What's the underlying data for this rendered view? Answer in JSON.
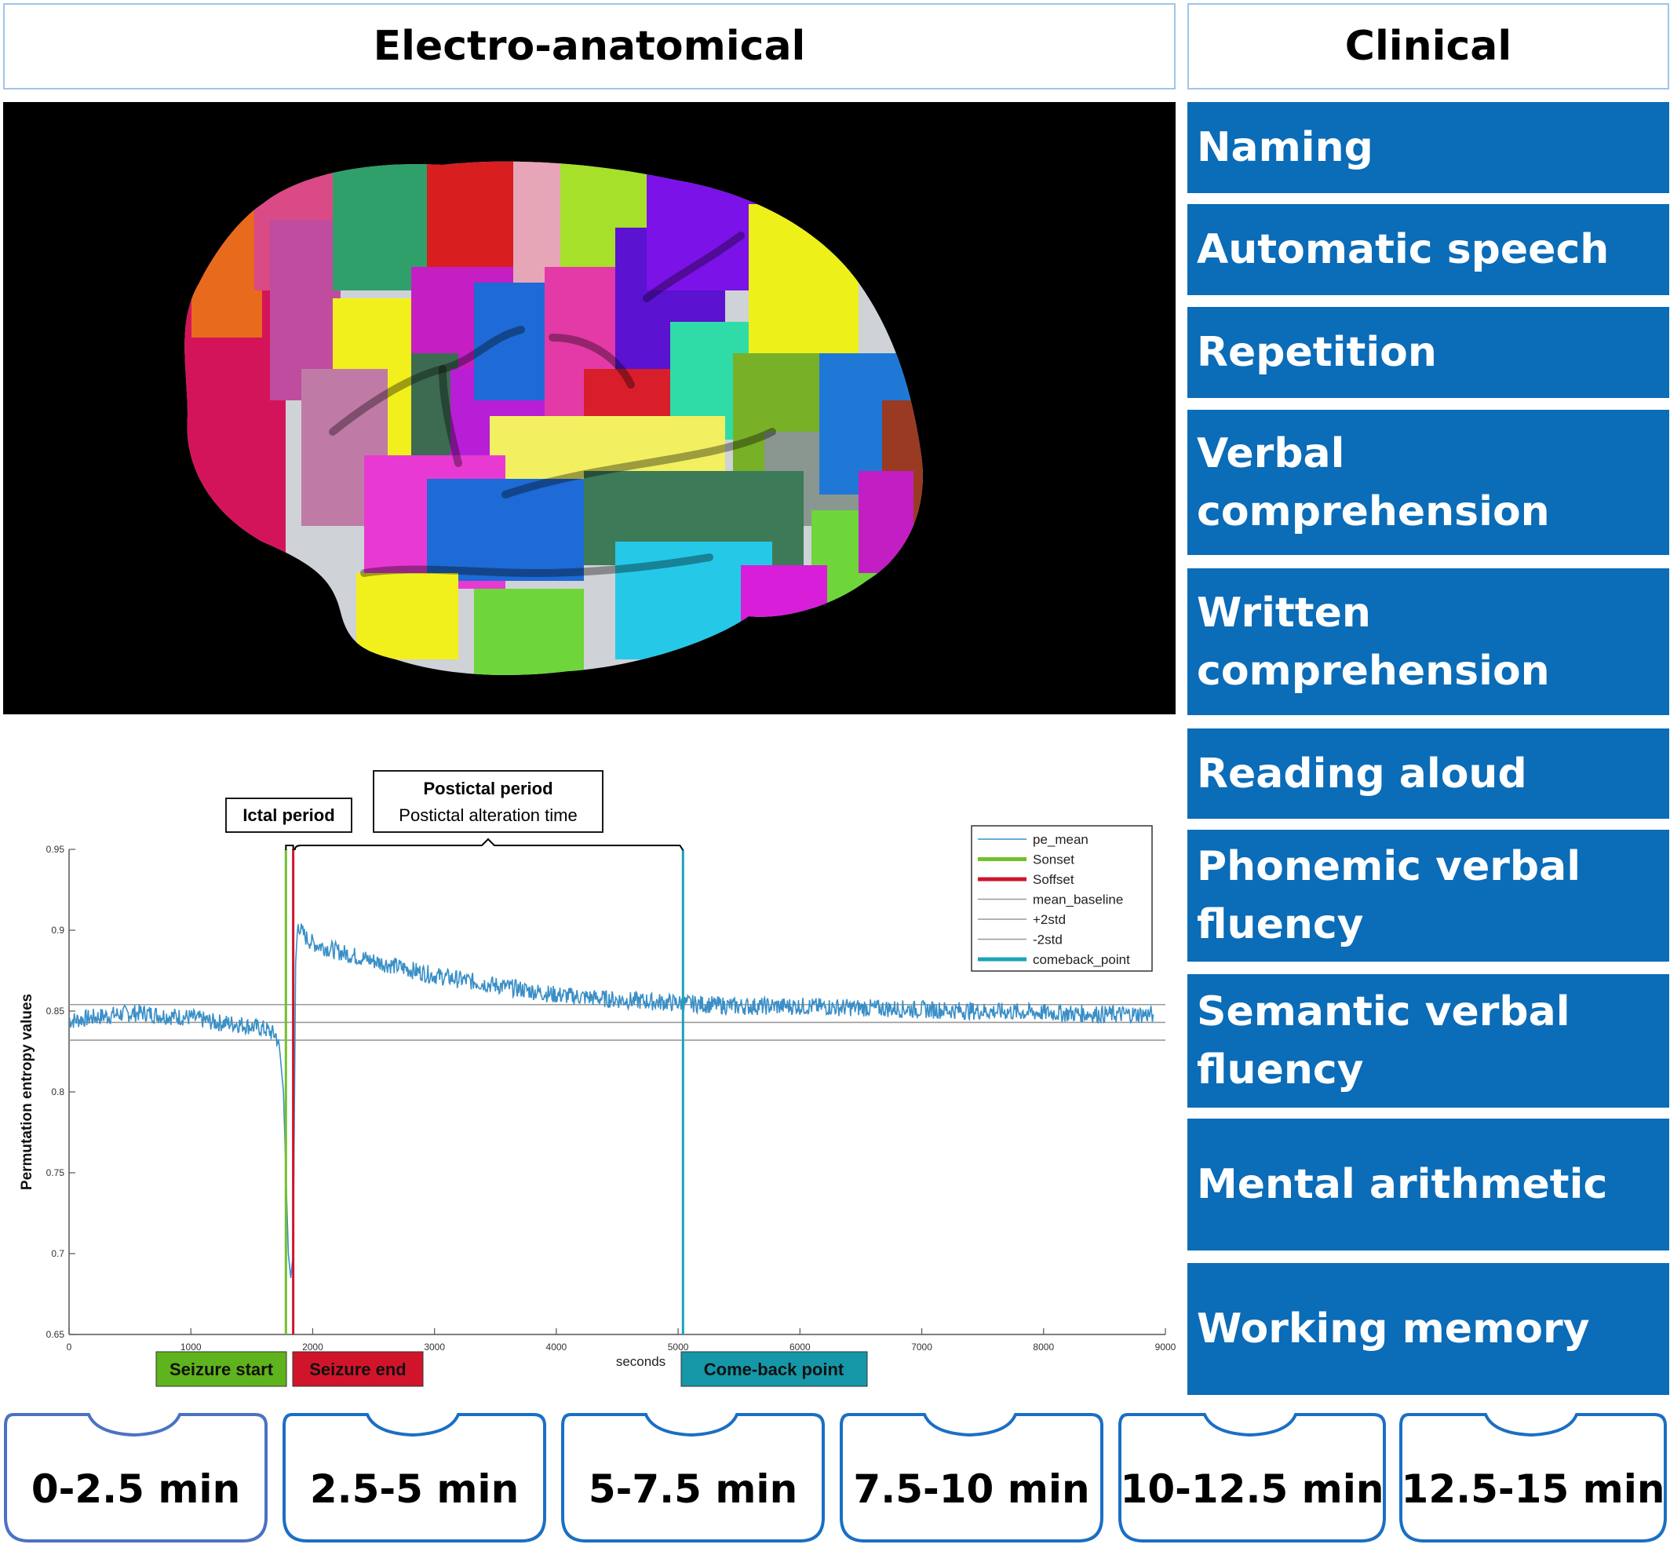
{
  "headers": {
    "left": "Electro-anatomical",
    "right": "Clinical"
  },
  "clinical_tests": [
    "Naming",
    "Automatic speech",
    "Repetition",
    "Verbal comprehension",
    "Written comprehension",
    "Reading aloud",
    "Phonemic verbal fluency",
    "Semantic verbal fluency",
    "Mental arithmetic",
    "Working memory"
  ],
  "time_windows": [
    "0-2.5 min",
    "2.5-5 min",
    "5-7.5 min",
    "7.5-10 min",
    "10-12.5 min",
    "12.5-15 min"
  ],
  "colors": {
    "clinical_box": "#0b6cb8",
    "header_border": "#9fc5e8",
    "tab_border": "#1a6fc4",
    "tab_border_first": "#4a72c4",
    "pe_mean": "#3a8fc7",
    "sonset": "#72c02c",
    "soffset": "#d0152a",
    "comeback": "#1ba3b8",
    "seizure_start_box": "#5fb31c",
    "seizure_end_box": "#d0152a",
    "comeback_box": "#1597a8"
  },
  "chart_data": {
    "type": "line",
    "xlabel": "seconds",
    "ylabel": "Permutation entropy values",
    "xlim": [
      0,
      9000
    ],
    "ylim": [
      0.65,
      0.95
    ],
    "xticks": [
      0,
      1000,
      2000,
      3000,
      4000,
      5000,
      6000,
      7000,
      8000,
      9000
    ],
    "yticks": [
      0.65,
      0.7,
      0.75,
      0.8,
      0.85,
      0.9,
      0.95
    ],
    "grid": false,
    "legend_position": "top-right",
    "legend": [
      "pe_mean",
      "Sonset",
      "Soffset",
      "mean_baseline",
      "+2std",
      "-2std",
      "comeback_point"
    ],
    "series": [
      {
        "name": "pe_mean",
        "x": [
          0,
          200,
          400,
          600,
          800,
          1000,
          1200,
          1400,
          1600,
          1700,
          1730,
          1760,
          1780,
          1800,
          1820,
          1840,
          1860,
          1880,
          1900,
          1950,
          2000,
          2200,
          2500,
          3000,
          3500,
          4000,
          4500,
          5000,
          5500,
          6000,
          6500,
          7000,
          7500,
          8000,
          8500,
          8900
        ],
        "y": [
          0.844,
          0.846,
          0.848,
          0.849,
          0.847,
          0.846,
          0.843,
          0.842,
          0.839,
          0.835,
          0.825,
          0.8,
          0.75,
          0.7,
          0.685,
          0.7,
          0.88,
          0.905,
          0.9,
          0.895,
          0.892,
          0.887,
          0.881,
          0.872,
          0.866,
          0.86,
          0.857,
          0.855,
          0.853,
          0.853,
          0.852,
          0.851,
          0.85,
          0.849,
          0.848,
          0.848
        ]
      },
      {
        "name": "mean_baseline",
        "y": [
          0.843
        ]
      },
      {
        "name": "+2std",
        "y": [
          0.854
        ]
      },
      {
        "name": "-2std",
        "y": [
          0.832
        ]
      }
    ],
    "markers": [
      {
        "name": "Sonset",
        "x": 1780
      },
      {
        "name": "Soffset",
        "x": 1840
      },
      {
        "name": "comeback_point",
        "x": 5040
      }
    ],
    "annotations": {
      "ictal": "Ictal period",
      "postictal_title": "Postictal period",
      "postictal_sub": "Postictal alteration time",
      "seizure_start": "Seizure start",
      "seizure_end": "Seizure end",
      "comeback": "Come-back point"
    }
  }
}
